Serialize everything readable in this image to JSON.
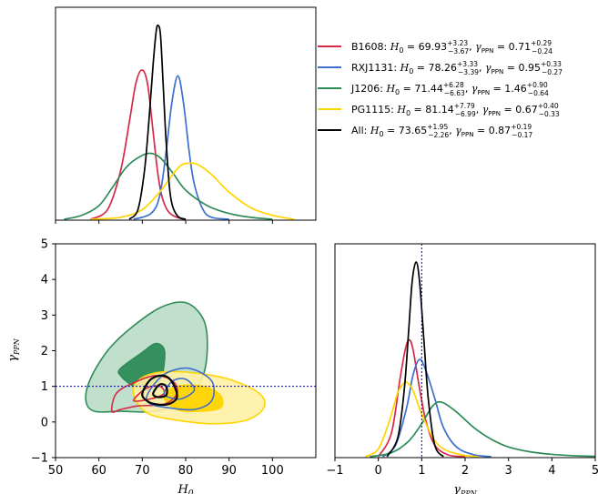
{
  "chart_data": [
    {
      "panel": "top-left",
      "type": "line",
      "title": "",
      "xlabel": "",
      "ylabel": "",
      "xlim": [
        50,
        110
      ],
      "xticks": [
        50,
        60,
        70,
        80,
        90,
        100
      ],
      "tick_labels_shown": false,
      "series": [
        {
          "name": "B1608",
          "color": "#d6294a",
          "peak_x": 69.93,
          "x": [
            58,
            62,
            65,
            67,
            68.5,
            69.9,
            71.2,
            72.5,
            73.5,
            74.5,
            76,
            78,
            80
          ],
          "y": [
            0.0,
            0.05,
            0.25,
            0.5,
            0.7,
            0.77,
            0.7,
            0.45,
            0.25,
            0.12,
            0.04,
            0.01,
            0.0
          ]
        },
        {
          "name": "RXJ1131",
          "color": "#3d6fcf",
          "peak_x": 78.26,
          "x": [
            68,
            72,
            74,
            75.5,
            76.8,
            78.2,
            79.5,
            80.8,
            82,
            84,
            86,
            90
          ],
          "y": [
            0.0,
            0.03,
            0.12,
            0.35,
            0.6,
            0.74,
            0.6,
            0.35,
            0.18,
            0.05,
            0.01,
            0.0
          ]
        },
        {
          "name": "J1206",
          "color": "#2e8b57",
          "peak_x": 71.44,
          "x": [
            52,
            56,
            60,
            63,
            66,
            68.5,
            71.4,
            74,
            77,
            80,
            85,
            90,
            95,
            100
          ],
          "y": [
            0.0,
            0.02,
            0.07,
            0.16,
            0.26,
            0.31,
            0.34,
            0.32,
            0.24,
            0.15,
            0.07,
            0.03,
            0.01,
            0.0
          ]
        },
        {
          "name": "PG1115",
          "color": "#ffd400",
          "peak_x": 81.14,
          "x": [
            58,
            65,
            70,
            74,
            77,
            79,
            81.1,
            83,
            86,
            90,
            95,
            100,
            105
          ],
          "y": [
            0.0,
            0.01,
            0.05,
            0.14,
            0.23,
            0.28,
            0.29,
            0.28,
            0.23,
            0.14,
            0.06,
            0.02,
            0.0
          ]
        },
        {
          "name": "All",
          "color": "#000000",
          "peak_x": 73.65,
          "x": [
            67,
            69,
            70.5,
            71.5,
            72.5,
            73.2,
            73.65,
            74.2,
            74.8,
            75.5,
            76.5,
            78,
            80
          ],
          "y": [
            0.0,
            0.05,
            0.25,
            0.5,
            0.8,
            0.97,
            1.0,
            0.95,
            0.7,
            0.4,
            0.12,
            0.02,
            0.0
          ]
        }
      ]
    },
    {
      "panel": "bottom-left",
      "type": "contour",
      "title": "",
      "xlabel": "H₀",
      "ylabel": "γ_PPN",
      "xlim": [
        50,
        110
      ],
      "ylim": [
        -1,
        5
      ],
      "xticks": [
        50,
        60,
        70,
        80,
        90,
        100
      ],
      "yticks": [
        -1,
        0,
        1,
        2,
        3,
        4,
        5
      ],
      "xtick_labels": [
        "50",
        "60",
        "70",
        "80",
        "90",
        "100"
      ],
      "ytick_labels": [
        "−1",
        "0",
        "1",
        "2",
        "3",
        "4",
        "5"
      ],
      "reference_line": {
        "axis": "y",
        "value": 1,
        "color": "#0000cc",
        "style": "dotted"
      },
      "contours": [
        {
          "name": "J1206",
          "color": "#2e8b57",
          "filled": true,
          "outer": [
            [
              57,
              0.6
            ],
            [
              58,
              1.2
            ],
            [
              62,
              2.0
            ],
            [
              67,
              2.6
            ],
            [
              74,
              3.2
            ],
            [
              80,
              3.35
            ],
            [
              84,
              2.9
            ],
            [
              85,
              2.2
            ],
            [
              84,
              1.3
            ],
            [
              80,
              0.6
            ],
            [
              73,
              0.3
            ],
            [
              65,
              0.3
            ],
            [
              59,
              0.3
            ]
          ],
          "inner": [
            [
              65,
              1.5
            ],
            [
              70,
              1.95
            ],
            [
              73,
              2.2
            ],
            [
              75,
              2.05
            ],
            [
              75,
              1.6
            ],
            [
              74,
              1.1
            ],
            [
              71,
              0.9
            ],
            [
              68,
              1.0
            ],
            [
              65,
              1.3
            ]
          ]
        },
        {
          "name": "PG1115",
          "color": "#ffd400",
          "filled": true,
          "outer": [
            [
              69,
              0.5
            ],
            [
              68,
              1.0
            ],
            [
              72,
              1.35
            ],
            [
              80,
              1.4
            ],
            [
              90,
              1.2
            ],
            [
              97,
              0.8
            ],
            [
              98,
              0.4
            ],
            [
              94,
              0.05
            ],
            [
              86,
              -0.05
            ],
            [
              78,
              0.05
            ],
            [
              72,
              0.2
            ]
          ],
          "inner": [
            [
              75,
              0.7
            ],
            [
              78,
              1.0
            ],
            [
              84,
              1.0
            ],
            [
              88,
              0.75
            ],
            [
              88,
              0.4
            ],
            [
              83,
              0.3
            ],
            [
              78,
              0.35
            ]
          ]
        },
        {
          "name": "B1608",
          "color": "#d6294a",
          "filled": false,
          "outer": [
            [
              63,
              0.3
            ],
            [
              64,
              0.8
            ],
            [
              68,
              1.1
            ],
            [
              73,
              1.3
            ],
            [
              77,
              1.15
            ],
            [
              78,
              0.8
            ],
            [
              75,
              0.5
            ],
            [
              69,
              0.45
            ],
            [
              65,
              0.35
            ]
          ],
          "inner": [
            [
              68,
              0.6
            ],
            [
              71,
              0.95
            ],
            [
              74,
              1.0
            ],
            [
              75,
              0.8
            ],
            [
              72,
              0.65
            ]
          ]
        },
        {
          "name": "RXJ1131",
          "color": "#3d6fcf",
          "filled": false,
          "outer": [
            [
              71,
              0.7
            ],
            [
              73,
              1.1
            ],
            [
              76,
              1.4
            ],
            [
              81,
              1.5
            ],
            [
              86,
              1.15
            ],
            [
              86,
              0.6
            ],
            [
              82,
              0.35
            ],
            [
              76,
              0.4
            ],
            [
              72,
              0.5
            ]
          ],
          "inner": [
            [
              75,
              0.8
            ],
            [
              77,
              1.15
            ],
            [
              80,
              1.2
            ],
            [
              82,
              0.9
            ],
            [
              79,
              0.65
            ],
            [
              76,
              0.7
            ]
          ]
        },
        {
          "name": "All",
          "color": "#000000",
          "filled": false,
          "thick": true,
          "outer": [
            [
              70,
              0.8
            ],
            [
              72,
              1.2
            ],
            [
              75,
              1.3
            ],
            [
              77,
              1.1
            ],
            [
              78,
              0.7
            ],
            [
              76,
              0.5
            ],
            [
              73,
              0.5
            ],
            [
              71,
              0.6
            ]
          ],
          "inner": [
            [
              72.5,
              0.8
            ],
            [
              74,
              1.05
            ],
            [
              75.5,
              1.0
            ],
            [
              75.5,
              0.75
            ],
            [
              73.5,
              0.7
            ]
          ]
        }
      ]
    },
    {
      "panel": "bottom-right",
      "type": "line",
      "title": "",
      "xlabel": "γ_PPN",
      "ylabel": "",
      "xlim": [
        -1,
        5
      ],
      "xticks": [
        -1,
        0,
        1,
        2,
        3,
        4,
        5
      ],
      "xtick_labels": [
        "−1",
        "0",
        "1",
        "2",
        "3",
        "4",
        "5"
      ],
      "reference_line": {
        "axis": "x",
        "value": 1,
        "color": "#0000cc",
        "style": "dotted"
      },
      "series": [
        {
          "name": "B1608",
          "color": "#d6294a",
          "peak_x": 0.71,
          "x": [
            0.0,
            0.3,
            0.5,
            0.62,
            0.71,
            0.8,
            0.95,
            1.1,
            1.3,
            1.6,
            2.0
          ],
          "y": [
            0.0,
            0.12,
            0.4,
            0.55,
            0.6,
            0.55,
            0.35,
            0.18,
            0.06,
            0.01,
            0.0
          ]
        },
        {
          "name": "RXJ1131",
          "color": "#3d6fcf",
          "peak_x": 0.95,
          "x": [
            0.1,
            0.4,
            0.65,
            0.8,
            0.95,
            1.1,
            1.3,
            1.5,
            1.8,
            2.2,
            2.6
          ],
          "y": [
            0.0,
            0.06,
            0.25,
            0.42,
            0.5,
            0.44,
            0.3,
            0.15,
            0.05,
            0.01,
            0.0
          ]
        },
        {
          "name": "J1206",
          "color": "#2e8b57",
          "peak_x": 1.46,
          "x": [
            -0.2,
            0.3,
            0.7,
            1.0,
            1.25,
            1.46,
            1.8,
            2.2,
            2.6,
            3.0,
            3.5,
            4.0,
            4.5,
            5.0
          ],
          "y": [
            0.0,
            0.02,
            0.08,
            0.17,
            0.26,
            0.28,
            0.23,
            0.15,
            0.09,
            0.05,
            0.025,
            0.012,
            0.005,
            0.002
          ]
        },
        {
          "name": "PG1115",
          "color": "#ffd400",
          "peak_x": 0.67,
          "x": [
            -0.3,
            0.0,
            0.25,
            0.45,
            0.6,
            0.67,
            0.8,
            1.0,
            1.25,
            1.5,
            1.9,
            2.3
          ],
          "y": [
            0.0,
            0.04,
            0.18,
            0.33,
            0.38,
            0.38,
            0.34,
            0.22,
            0.1,
            0.04,
            0.01,
            0.0
          ]
        },
        {
          "name": "All",
          "color": "#000000",
          "peak_x": 0.87,
          "x": [
            0.2,
            0.45,
            0.6,
            0.7,
            0.78,
            0.87,
            0.95,
            1.05,
            1.15,
            1.3,
            1.5
          ],
          "y": [
            0.0,
            0.1,
            0.35,
            0.65,
            0.9,
            1.0,
            0.9,
            0.6,
            0.3,
            0.06,
            0.0
          ]
        }
      ]
    }
  ],
  "legend": {
    "placement": "top-right",
    "entries": [
      {
        "color": "#d6294a",
        "label": "B1608",
        "h0": "69.93",
        "h0_up": "+3.23",
        "h0_dn": "−3.67",
        "g": "0.71",
        "g_up": "+0.29",
        "g_dn": "−0.24"
      },
      {
        "color": "#3d6fcf",
        "label": "RXJ1131",
        "h0": "78.26",
        "h0_up": "+3.33",
        "h0_dn": "−3.39",
        "g": "0.95",
        "g_up": "+0.33",
        "g_dn": "−0.27"
      },
      {
        "color": "#2e8b57",
        "label": "J1206",
        "h0": "71.44",
        "h0_up": "+6.28",
        "h0_dn": "−6.63",
        "g": "1.46",
        "g_up": "+0.90",
        "g_dn": "−0.64"
      },
      {
        "color": "#ffd400",
        "label": "PG1115",
        "h0": "81.14",
        "h0_up": "+7.79",
        "h0_dn": "−6.99",
        "g": "0.67",
        "g_up": "+0.40",
        "g_dn": "−0.33"
      },
      {
        "color": "#000000",
        "label": "All",
        "h0": "73.65",
        "h0_up": "+1.95",
        "h0_dn": "−2.26",
        "g": "0.87",
        "g_up": "+0.19",
        "g_dn": "−0.17"
      }
    ]
  }
}
